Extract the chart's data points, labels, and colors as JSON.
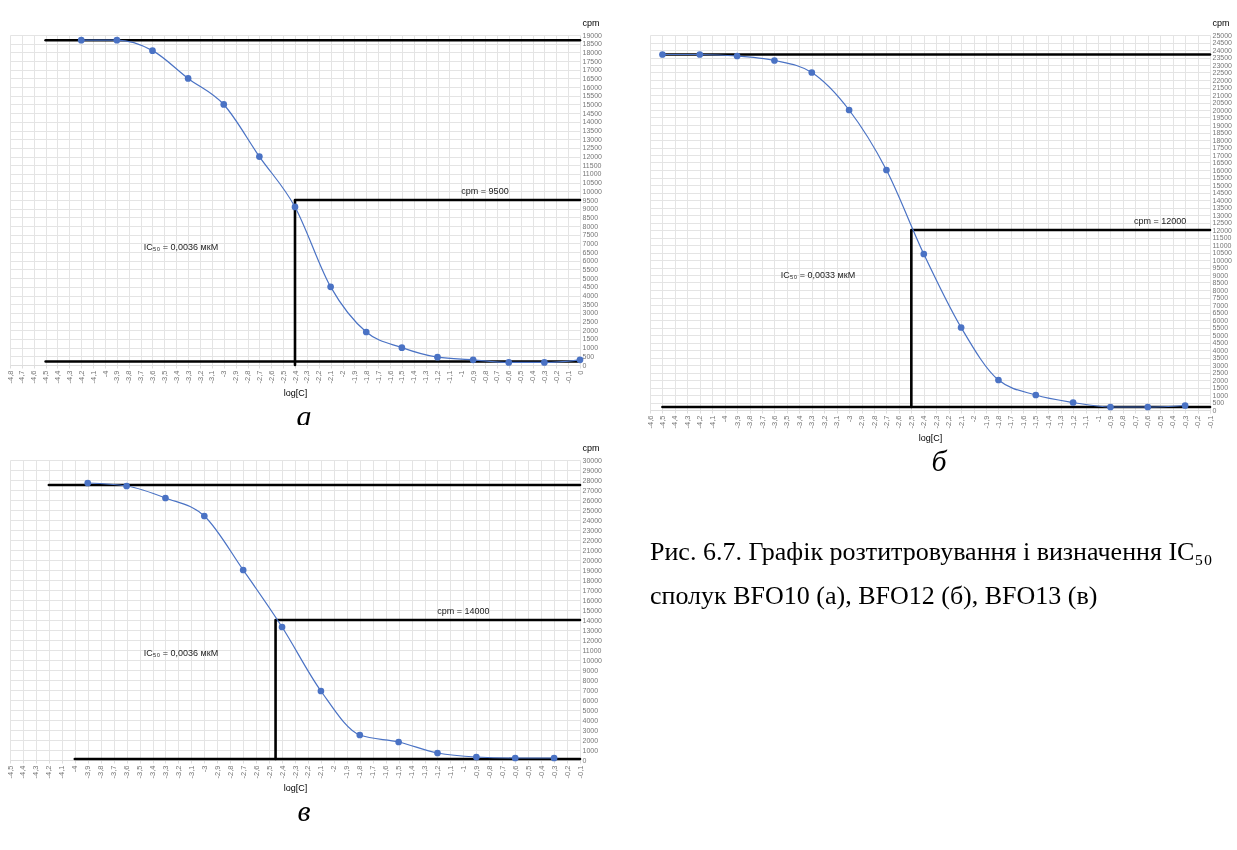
{
  "chart_data": [
    {
      "type": "line",
      "subtitle": "а",
      "xlabel": "log[C]",
      "ylabel": "cpm",
      "grid": true,
      "xlim": [
        -4.8,
        0
      ],
      "ylim": [
        0,
        19000
      ],
      "xticks": [
        {
          "value": -4.8,
          "label": "-4,8"
        },
        {
          "value": -4.7,
          "label": "-4,7"
        },
        {
          "value": -4.6,
          "label": "-4,6"
        },
        {
          "value": -4.5,
          "label": "-4,5"
        },
        {
          "value": -4.4,
          "label": "-4,4"
        },
        {
          "value": -4.3,
          "label": "-4,3"
        },
        {
          "value": -4.2,
          "label": "-4,2"
        },
        {
          "value": -4.1,
          "label": "-4,1"
        },
        -4,
        {
          "value": -3.9,
          "label": "-3,9"
        },
        {
          "value": -3.8,
          "label": "-3,8"
        },
        {
          "value": -3.7,
          "label": "-3,7"
        },
        {
          "value": -3.6,
          "label": "-3,6"
        },
        {
          "value": -3.5,
          "label": "-3,5"
        },
        {
          "value": -3.4,
          "label": "-3,4"
        },
        {
          "value": -3.3,
          "label": "-3,3"
        },
        {
          "value": -3.2,
          "label": "-3,2"
        },
        {
          "value": -3.1,
          "label": "-3,1"
        },
        -3,
        {
          "value": -2.9,
          "label": "-2,9"
        },
        {
          "value": -2.8,
          "label": "-2,8"
        },
        {
          "value": -2.7,
          "label": "-2,7"
        },
        {
          "value": -2.6,
          "label": "-2,6"
        },
        {
          "value": -2.5,
          "label": "-2,5"
        },
        {
          "value": -2.4,
          "label": "-2,4"
        },
        {
          "value": -2.3,
          "label": "-2,3"
        },
        {
          "value": -2.2,
          "label": "-2,2"
        },
        {
          "value": -2.1,
          "label": "-2,1"
        },
        -2,
        {
          "value": -1.9,
          "label": "-1,9"
        },
        {
          "value": -1.8,
          "label": "-1,8"
        },
        {
          "value": -1.7,
          "label": "-1,7"
        },
        {
          "value": -1.6,
          "label": "-1,6"
        },
        {
          "value": -1.5,
          "label": "-1,5"
        },
        {
          "value": -1.4,
          "label": "-1,4"
        },
        {
          "value": -1.3,
          "label": "-1,3"
        },
        {
          "value": -1.2,
          "label": "-1,2"
        },
        {
          "value": -1.1,
          "label": "-1,1"
        },
        -1,
        {
          "value": -0.9,
          "label": "-0,9"
        },
        {
          "value": -0.8,
          "label": "-0,8"
        },
        {
          "value": -0.7,
          "label": "-0,7"
        },
        {
          "value": -0.6,
          "label": "-0,6"
        },
        {
          "value": -0.5,
          "label": "-0,5"
        },
        {
          "value": -0.4,
          "label": "-0,4"
        },
        {
          "value": -0.3,
          "label": "-0,3"
        },
        {
          "value": -0.2,
          "label": "-0,2"
        },
        {
          "value": -0.1,
          "label": "-0,1"
        },
        0
      ],
      "yticks": [
        0,
        500,
        1000,
        1500,
        2000,
        2500,
        3000,
        3500,
        4000,
        4500,
        5000,
        5500,
        6000,
        6500,
        7000,
        7500,
        8000,
        8500,
        9000,
        9500,
        10000,
        10500,
        11000,
        11500,
        12000,
        12500,
        13000,
        13500,
        14000,
        14500,
        15000,
        15500,
        16000,
        16500,
        17000,
        17500,
        18000,
        18500,
        19000
      ],
      "series": [
        {
          "type": "line",
          "marker": "circle",
          "color": "#4a72c4",
          "x": [
            -4.2,
            -3.9,
            -3.6,
            -3.3,
            -3.0,
            -2.7,
            -2.4,
            -2.1,
            -1.8,
            -1.5,
            -1.2,
            -0.9,
            -0.6,
            -0.3,
            0
          ],
          "values": [
            18700,
            18700,
            18100,
            16500,
            15000,
            12000,
            9100,
            4500,
            1900,
            1000,
            450,
            300,
            150,
            150,
            300
          ]
        },
        {
          "type": "line",
          "marker": "none",
          "color": "#000000",
          "x": [
            -4.5,
            0
          ],
          "values": [
            18700,
            18700
          ]
        },
        {
          "type": "line",
          "marker": "none",
          "color": "#000000",
          "x": [
            -4.5,
            0
          ],
          "values": [
            200,
            200
          ]
        },
        {
          "type": "line",
          "marker": "none",
          "color": "#000000",
          "x": [
            -2.4,
            -2.4,
            0
          ],
          "values": [
            0,
            9500,
            9500
          ]
        }
      ],
      "annotations": [
        {
          "text": "cpm = 9500",
          "x": -0.8,
          "y": 9500
        },
        "IC₅₀ = 0,0036 мкМ"
      ]
    },
    {
      "type": "line",
      "subtitle": "б",
      "xlabel": "log[C]",
      "ylabel": "cpm",
      "grid": true,
      "xlim": [
        -4.6,
        -0.1
      ],
      "ylim": [
        0,
        25000
      ],
      "xticks": [
        {
          "value": -4.6,
          "label": "-4,6"
        },
        {
          "value": -4.5,
          "label": "-4,5"
        },
        {
          "value": -4.4,
          "label": "-4,4"
        },
        {
          "value": -4.3,
          "label": "-4,3"
        },
        {
          "value": -4.2,
          "label": "-4,2"
        },
        {
          "value": -4.1,
          "label": "-4,1"
        },
        -4,
        {
          "value": -3.9,
          "label": "-3,9"
        },
        {
          "value": -3.8,
          "label": "-3,8"
        },
        {
          "value": -3.7,
          "label": "-3,7"
        },
        {
          "value": -3.6,
          "label": "-3,6"
        },
        {
          "value": -3.5,
          "label": "-3,5"
        },
        {
          "value": -3.4,
          "label": "-3,4"
        },
        {
          "value": -3.3,
          "label": "-3,3"
        },
        {
          "value": -3.2,
          "label": "-3,2"
        },
        {
          "value": -3.1,
          "label": "-3,1"
        },
        -3,
        {
          "value": -2.9,
          "label": "-2,9"
        },
        {
          "value": -2.8,
          "label": "-2,8"
        },
        {
          "value": -2.7,
          "label": "-2,7"
        },
        {
          "value": -2.6,
          "label": "-2,6"
        },
        {
          "value": -2.5,
          "label": "-2,5"
        },
        {
          "value": -2.4,
          "label": "-2,4"
        },
        {
          "value": -2.3,
          "label": "-2,3"
        },
        {
          "value": -2.2,
          "label": "-2,2"
        },
        {
          "value": -2.1,
          "label": "-2,1"
        },
        -2,
        {
          "value": -1.9,
          "label": "-1,9"
        },
        {
          "value": -1.8,
          "label": "-1,8"
        },
        {
          "value": -1.7,
          "label": "-1,7"
        },
        {
          "value": -1.6,
          "label": "-1,6"
        },
        {
          "value": -1.5,
          "label": "-1,5"
        },
        {
          "value": -1.4,
          "label": "-1,4"
        },
        {
          "value": -1.3,
          "label": "-1,3"
        },
        {
          "value": -1.2,
          "label": "-1,2"
        },
        {
          "value": -1.1,
          "label": "-1,1"
        },
        -1,
        {
          "value": -0.9,
          "label": "-0,9"
        },
        {
          "value": -0.8,
          "label": "-0,8"
        },
        {
          "value": -0.7,
          "label": "-0,7"
        },
        {
          "value": -0.6,
          "label": "-0,6"
        },
        {
          "value": -0.5,
          "label": "-0,5"
        },
        {
          "value": -0.4,
          "label": "-0,4"
        },
        {
          "value": -0.3,
          "label": "-0,3"
        },
        {
          "value": -0.2,
          "label": "-0,2"
        },
        {
          "value": -0.1,
          "label": "-0,1"
        }
      ],
      "yticks": [
        0,
        500,
        1000,
        1500,
        2000,
        2500,
        3000,
        3500,
        4000,
        4500,
        5000,
        5500,
        6000,
        6500,
        7000,
        7500,
        8000,
        8500,
        9000,
        9500,
        10000,
        10500,
        11000,
        11500,
        12000,
        12500,
        13000,
        13500,
        14000,
        14500,
        15000,
        15500,
        16000,
        16500,
        17000,
        17500,
        18000,
        18500,
        19000,
        19500,
        20000,
        20500,
        21000,
        21500,
        22000,
        22500,
        23000,
        23500,
        24000,
        24500,
        25000
      ],
      "series": [
        {
          "type": "line",
          "marker": "circle",
          "color": "#4a72c4",
          "x": [
            -4.5,
            -4.2,
            -3.9,
            -3.6,
            -3.3,
            -3.0,
            -2.7,
            -2.4,
            -2.1,
            -1.8,
            -1.5,
            -1.2,
            -0.9,
            -0.6,
            -0.3
          ],
          "values": [
            23700,
            23700,
            23600,
            23300,
            22500,
            20000,
            16000,
            10400,
            5500,
            2000,
            1000,
            500,
            200,
            200,
            300
          ]
        },
        {
          "type": "line",
          "marker": "none",
          "color": "#000000",
          "x": [
            -4.5,
            -0.1
          ],
          "values": [
            23700,
            23700
          ]
        },
        {
          "type": "line",
          "marker": "none",
          "color": "#000000",
          "x": [
            -4.5,
            -0.1
          ],
          "values": [
            200,
            200
          ]
        },
        {
          "type": "line",
          "marker": "none",
          "color": "#000000",
          "x": [
            -2.5,
            -2.5,
            -0.1
          ],
          "values": [
            200,
            12000,
            12000
          ]
        }
      ],
      "annotations": [
        {
          "text": "cpm = 12000",
          "x": -0.5,
          "y": 12000
        },
        "IC₅₀ = 0,0033 мкМ"
      ]
    },
    {
      "type": "line",
      "subtitle": "в",
      "xlabel": "log[C]",
      "ylabel": "cpm",
      "grid": true,
      "xlim": [
        -4.5,
        -0.1
      ],
      "ylim": [
        0,
        30000
      ],
      "xticks": [
        {
          "value": -4.5,
          "label": "-4,5"
        },
        {
          "value": -4.4,
          "label": "-4,4"
        },
        {
          "value": -4.3,
          "label": "-4,3"
        },
        {
          "value": -4.2,
          "label": "-4,2"
        },
        {
          "value": -4.1,
          "label": "-4,1"
        },
        -4,
        {
          "value": -3.9,
          "label": "-3,9"
        },
        {
          "value": -3.8,
          "label": "-3,8"
        },
        {
          "value": -3.7,
          "label": "-3,7"
        },
        {
          "value": -3.6,
          "label": "-3,6"
        },
        {
          "value": -3.5,
          "label": "-3,5"
        },
        {
          "value": -3.4,
          "label": "-3,4"
        },
        {
          "value": -3.3,
          "label": "-3,3"
        },
        {
          "value": -3.2,
          "label": "-3,2"
        },
        {
          "value": -3.1,
          "label": "-3,1"
        },
        -3,
        {
          "value": -2.9,
          "label": "-2,9"
        },
        {
          "value": -2.8,
          "label": "-2,8"
        },
        {
          "value": -2.7,
          "label": "-2,7"
        },
        {
          "value": -2.6,
          "label": "-2,6"
        },
        {
          "value": -2.5,
          "label": "-2,5"
        },
        {
          "value": -2.4,
          "label": "-2,4"
        },
        {
          "value": -2.3,
          "label": "-2,3"
        },
        {
          "value": -2.2,
          "label": "-2,2"
        },
        {
          "value": -2.1,
          "label": "-2,1"
        },
        -2,
        {
          "value": -1.9,
          "label": "-1,9"
        },
        {
          "value": -1.8,
          "label": "-1,8"
        },
        {
          "value": -1.7,
          "label": "-1,7"
        },
        {
          "value": -1.6,
          "label": "-1,6"
        },
        {
          "value": -1.5,
          "label": "-1,5"
        },
        {
          "value": -1.4,
          "label": "-1,4"
        },
        {
          "value": -1.3,
          "label": "-1,3"
        },
        {
          "value": -1.2,
          "label": "-1,2"
        },
        {
          "value": -1.1,
          "label": "-1,1"
        },
        -1,
        {
          "value": -0.9,
          "label": "-0,9"
        },
        {
          "value": -0.8,
          "label": "-0,8"
        },
        {
          "value": -0.7,
          "label": "-0,7"
        },
        {
          "value": -0.6,
          "label": "-0,6"
        },
        {
          "value": -0.5,
          "label": "-0,5"
        },
        {
          "value": -0.4,
          "label": "-0,4"
        },
        {
          "value": -0.3,
          "label": "-0,3"
        },
        {
          "value": -0.2,
          "label": "-0,2"
        },
        {
          "value": -0.1,
          "label": "-0,1"
        }
      ],
      "yticks": [
        0,
        1000,
        2000,
        3000,
        4000,
        5000,
        6000,
        7000,
        8000,
        9000,
        10000,
        11000,
        12000,
        13000,
        14000,
        15000,
        16000,
        17000,
        18000,
        19000,
        20000,
        21000,
        22000,
        23000,
        24000,
        25000,
        26000,
        27000,
        28000,
        29000,
        30000
      ],
      "series": [
        {
          "type": "line",
          "marker": "circle",
          "color": "#4a72c4",
          "x": [
            -3.9,
            -3.6,
            -3.3,
            -3.0,
            -2.7,
            -2.4,
            -2.1,
            -1.8,
            -1.5,
            -1.2,
            -0.9,
            -0.6,
            -0.3
          ],
          "values": [
            27700,
            27400,
            26200,
            24400,
            19000,
            13300,
            6900,
            2500,
            1800,
            700,
            300,
            200,
            200
          ]
        },
        {
          "type": "line",
          "marker": "none",
          "color": "#000000",
          "x": [
            -4.2,
            -0.1
          ],
          "values": [
            27500,
            27500
          ]
        },
        {
          "type": "line",
          "marker": "none",
          "color": "#000000",
          "x": [
            -4.0,
            -0.1
          ],
          "values": [
            100,
            100
          ]
        },
        {
          "type": "line",
          "marker": "none",
          "color": "#000000",
          "x": [
            -2.45,
            -2.45,
            -0.1
          ],
          "values": [
            100,
            14000,
            14000
          ]
        }
      ],
      "annotations": [
        {
          "text": "cpm = 14000",
          "x": -1.0,
          "y": 14000
        },
        "IC₅₀ = 0,0036 мкМ"
      ]
    },
    {
      "type": "other",
      "annotations": [
        "Рис. 6.7. Графік розтитровування і визначення IC₅₀ сполук BFO10 (а), BFO12 (б), BFO13 (в)"
      ]
    }
  ]
}
